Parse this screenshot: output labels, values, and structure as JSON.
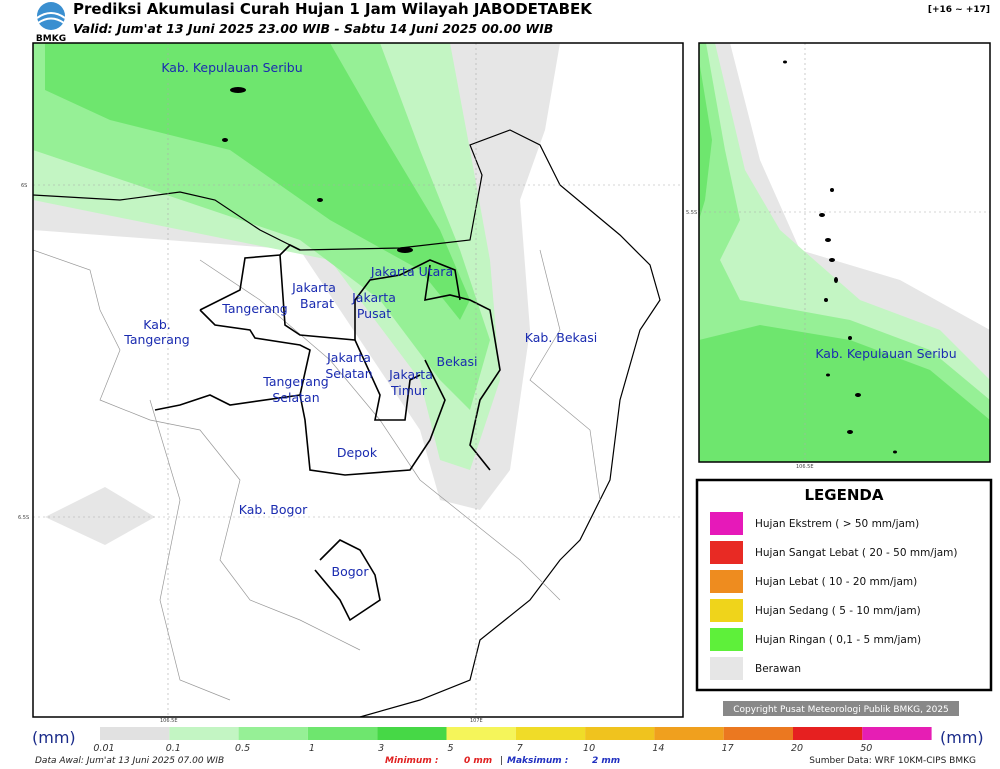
{
  "header": {
    "logo": "BMKG",
    "title": "Prediksi Akumulasi Curah Hujan 1 Jam Wilayah JABODETABEK",
    "subtitle": "Valid: Jum'at 13 Juni 2025 23.00 WIB - Sabtu 14 Juni 2025 00.00 WIB",
    "step": "[+16 ~ +17]"
  },
  "map": {
    "regions": [
      [
        "Kab. Kepulauan Seribu"
      ],
      [
        "Jakarta Utara"
      ],
      [
        "Jakarta",
        "Barat"
      ],
      [
        "Jakarta",
        "Pusat"
      ],
      [
        "Tangerang"
      ],
      [
        "Kab.",
        "Tangerang"
      ],
      [
        "Jakarta",
        "Selatan"
      ],
      [
        "Jakarta",
        "Timur"
      ],
      [
        "Bekasi"
      ],
      [
        "Kab. Bekasi"
      ],
      [
        "Tangerang",
        "Selatan"
      ],
      [
        "Depok"
      ],
      [
        "Kab. Bogor"
      ],
      [
        "Bogor"
      ]
    ],
    "grid_labels": [
      "6S",
      "6.5S",
      "106.5E",
      "107E"
    ]
  },
  "inset": {
    "region": "Kab. Kepulauan Seribu",
    "grid_labels": [
      "5.5S",
      "106.5E"
    ]
  },
  "legend": {
    "title": "LEGENDA",
    "items": [
      {
        "label": "Hujan Ekstrem ( > 50 mm/jam)",
        "color": "#e619b9"
      },
      {
        "label": "Hujan Sangat Lebat ( 20 - 50 mm/jam)",
        "color": "#e82a24"
      },
      {
        "label": "Hujan Lebat ( 10 - 20 mm/jam)",
        "color": "#ee8c1f"
      },
      {
        "label": "Hujan Sedang ( 5 - 10 mm/jam)",
        "color": "#efd41b"
      },
      {
        "label": "Hujan Ringan ( 0,1 - 5 mm/jam)",
        "color": "#5ef03a"
      },
      {
        "label": "Berawan",
        "color": "#e6e6e6"
      }
    ]
  },
  "copyright": "Copyright Pusat Meteorologi Publik BMKG, 2025",
  "colorbar": {
    "unit": "(mm)",
    "labels": [
      "0.01",
      "0.1",
      "0.5",
      "1",
      "3",
      "5",
      "7",
      "10",
      "14",
      "17",
      "20",
      "50"
    ],
    "colors": [
      "#e1e1e1",
      "#c3f5c3",
      "#96f096",
      "#6ee66e",
      "#46d846",
      "#f5f55a",
      "#f0dc28",
      "#f0c31e",
      "#f0a01e",
      "#eb7820",
      "#e62020",
      "#e61eb4"
    ]
  },
  "footer": {
    "data_awal": "Data Awal: Jum'at 13 Juni 2025 07.00 WIB",
    "min_label": "Minimum :",
    "min_value": "0 mm",
    "sep": "|",
    "max_label": "Maksimum :",
    "max_value": "2 mm",
    "source": "Sumber Data: WRF 10KM-CIPS BMKG"
  }
}
